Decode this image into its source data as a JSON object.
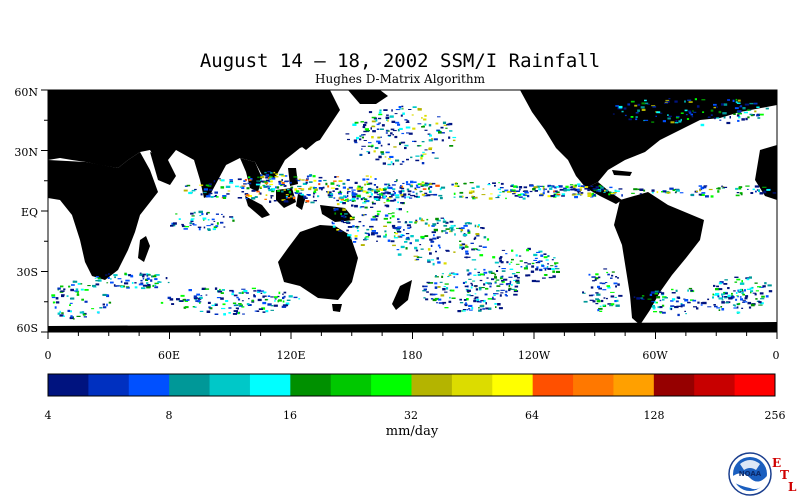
{
  "title": "August 14 – 18, 2002 SSM/I Rainfall",
  "subtitle": "Hughes D-Matrix Algorithm",
  "lat_labels": [
    "60N",
    "30N",
    "EQ",
    "30S",
    "60S"
  ],
  "lon_labels": [
    "0",
    "60E",
    "120E",
    "180",
    "120W",
    "60W",
    "0"
  ],
  "colorbar": {
    "colors": [
      "#00137f",
      "#0030c0",
      "#0050ff",
      "#009898",
      "#00c8c8",
      "#00ffff",
      "#009000",
      "#00c800",
      "#00ff00",
      "#b4b400",
      "#dcdc00",
      "#ffff00",
      "#ff5000",
      "#ff7800",
      "#ffa000",
      "#960000",
      "#c80000",
      "#ff0000"
    ],
    "tick_labels": [
      "4",
      "8",
      "16",
      "32",
      "64",
      "128",
      "256"
    ],
    "units": "mm/day"
  },
  "logo": {
    "text": "NOAA",
    "etl_letters": [
      "E",
      "T",
      "L"
    ]
  },
  "colors": {
    "land": "#000000",
    "ocean": "#ffffff"
  }
}
